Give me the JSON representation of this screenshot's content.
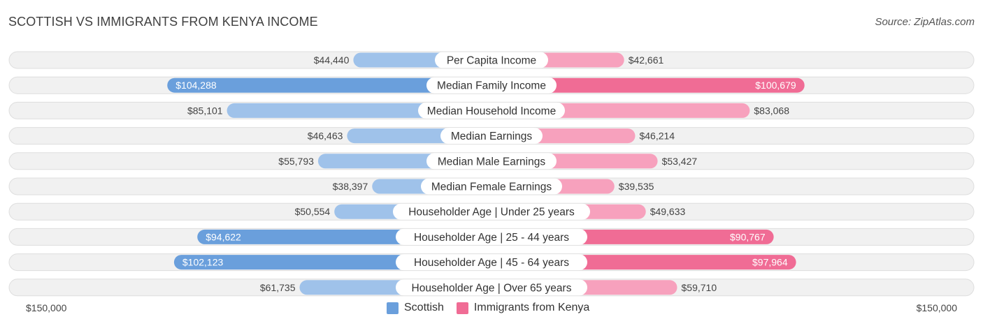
{
  "title": "SCOTTISH VS IMMIGRANTS FROM KENYA INCOME",
  "source": "Source: ZipAtlas.com",
  "colors": {
    "left_dark": "#6a9fdc",
    "left_light": "#9fc2ea",
    "right_dark": "#f06c95",
    "right_light": "#f7a1bd",
    "row_bg": "#f1f1f1",
    "row_border": "#dedede"
  },
  "chart_data": {
    "type": "bar",
    "orientation": "diverging-horizontal",
    "title": "SCOTTISH VS IMMIGRANTS FROM KENYA INCOME",
    "axis_max": 150000,
    "axis_left_label": "$150,000",
    "axis_right_label": "$150,000",
    "categories": [
      "Per Capita Income",
      "Median Family Income",
      "Median Household Income",
      "Median Earnings",
      "Median Male Earnings",
      "Median Female Earnings",
      "Householder Age | Under 25 years",
      "Householder Age | 25 - 44 years",
      "Householder Age | 45 - 64 years",
      "Householder Age | Over 65 years"
    ],
    "series": [
      {
        "name": "Scottish",
        "values": [
          44440,
          104288,
          85101,
          46463,
          55793,
          38397,
          50554,
          94622,
          102123,
          61735
        ],
        "labels": [
          "$44,440",
          "$104,288",
          "$85,101",
          "$46,463",
          "$55,793",
          "$38,397",
          "$50,554",
          "$94,622",
          "$102,123",
          "$61,735"
        ]
      },
      {
        "name": "Immigrants from Kenya",
        "values": [
          42661,
          100679,
          83068,
          46214,
          53427,
          39535,
          49633,
          90767,
          97964,
          59710
        ],
        "labels": [
          "$42,661",
          "$100,679",
          "$83,068",
          "$46,214",
          "$53,427",
          "$39,535",
          "$49,633",
          "$90,767",
          "$97,964",
          "$59,710"
        ]
      }
    ],
    "legend": [
      "Scottish",
      "Immigrants from Kenya"
    ],
    "legend_position": "bottom-center"
  }
}
